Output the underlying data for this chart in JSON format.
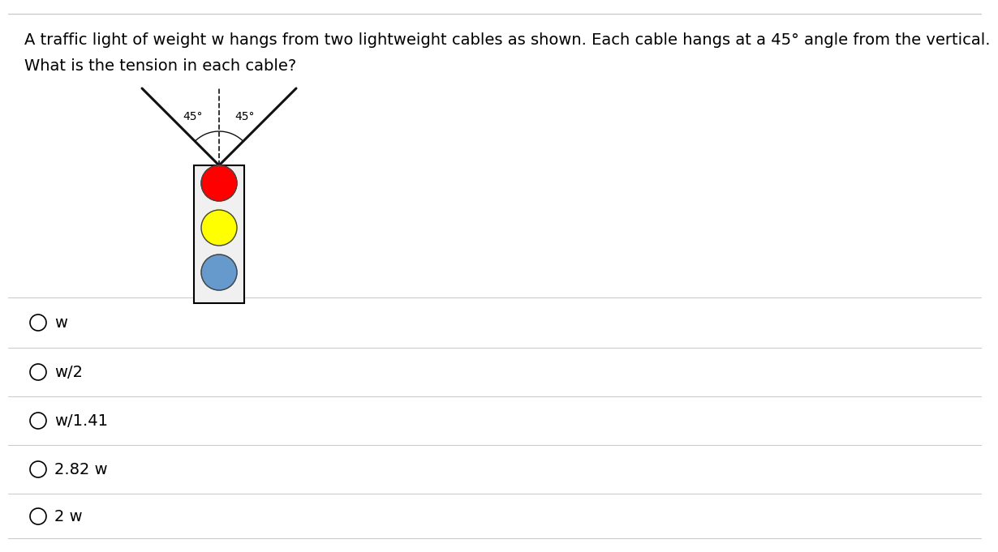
{
  "title_line1": "A traffic light of weight w hangs from two lightweight cables as shown. Each cable hangs at a 45° angle from the vertical.",
  "title_line2": "What is the tension in each cable?",
  "options": [
    "w",
    "w/2",
    "w/1.41",
    "2.82 w",
    "2 w"
  ],
  "bg_color": "#ffffff",
  "text_color": "#000000",
  "separator_color": "#cccccc",
  "traffic_light": {
    "light_colors": [
      "#ff0000",
      "#ffff00",
      "#6699cc"
    ],
    "box_edge_color": "#000000",
    "box_face_color": "#f0f0f0"
  },
  "cable": {
    "angle_label_left": "45°",
    "angle_label_right": "45°",
    "line_color": "#111111",
    "line_width": 2.2
  },
  "font_size_title": 14,
  "font_size_options": 14
}
